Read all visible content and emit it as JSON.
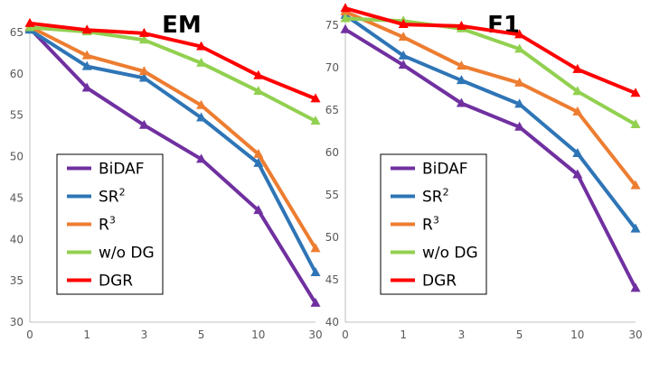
{
  "chart_data": [
    {
      "type": "line",
      "title": "EM",
      "categories": [
        "0",
        "1",
        "3",
        "5",
        "10",
        "30"
      ],
      "ylim": [
        30,
        65
      ],
      "yticks": [
        30,
        35,
        40,
        45,
        50,
        55,
        60,
        65
      ],
      "grid": false,
      "legend_position": "bottom-left",
      "series": [
        {
          "name": "BiDAF",
          "name_main": "BiDAF",
          "name_sup": "",
          "color": "#7030a0",
          "values": [
            65.5,
            58.3,
            53.8,
            49.7,
            43.5,
            32.3
          ]
        },
        {
          "name": "SR2",
          "name_main": "SR",
          "name_sup": "2",
          "color": "#2e75b6",
          "values": [
            65.3,
            60.9,
            59.5,
            54.7,
            49.2,
            36.0
          ]
        },
        {
          "name": "R3",
          "name_main": "R",
          "name_sup": "3",
          "color": "#ed7d31",
          "values": [
            65.7,
            62.2,
            60.3,
            56.2,
            50.3,
            38.9
          ]
        },
        {
          "name": "w/o DG",
          "name_main": "w/o DG",
          "name_sup": "",
          "color": "#92d050",
          "values": [
            65.6,
            65.1,
            64.1,
            61.3,
            57.9,
            54.3
          ]
        },
        {
          "name": "DGR",
          "name_main": "DGR",
          "name_sup": "",
          "color": "#ff0000",
          "values": [
            66.1,
            65.3,
            64.9,
            63.3,
            59.8,
            57.0
          ]
        }
      ]
    },
    {
      "type": "line",
      "title": "F1",
      "categories": [
        "0",
        "1",
        "3",
        "5",
        "10",
        "30"
      ],
      "ylim": [
        40,
        75
      ],
      "yticks": [
        40,
        45,
        50,
        55,
        60,
        65,
        70,
        75
      ],
      "grid": false,
      "legend_position": "bottom-left",
      "series": [
        {
          "name": "BiDAF",
          "name_main": "BiDAF",
          "name_sup": "",
          "color": "#7030a0",
          "values": [
            74.5,
            70.3,
            65.8,
            63.0,
            57.4,
            44.0
          ]
        },
        {
          "name": "SR2",
          "name_main": "SR",
          "name_sup": "2",
          "color": "#2e75b6",
          "values": [
            76.2,
            71.4,
            68.5,
            65.7,
            59.9,
            51.0
          ]
        },
        {
          "name": "R3",
          "name_main": "R",
          "name_sup": "3",
          "color": "#ed7d31",
          "values": [
            76.6,
            73.6,
            70.2,
            68.2,
            64.8,
            56.1
          ]
        },
        {
          "name": "w/o DG",
          "name_main": "w/o DG",
          "name_sup": "",
          "color": "#92d050",
          "values": [
            75.8,
            75.5,
            74.6,
            72.2,
            67.2,
            63.3
          ]
        },
        {
          "name": "DGR",
          "name_main": "DGR",
          "name_sup": "",
          "color": "#ff0000",
          "values": [
            77.0,
            75.1,
            74.9,
            73.9,
            69.8,
            67.0
          ]
        }
      ]
    }
  ]
}
